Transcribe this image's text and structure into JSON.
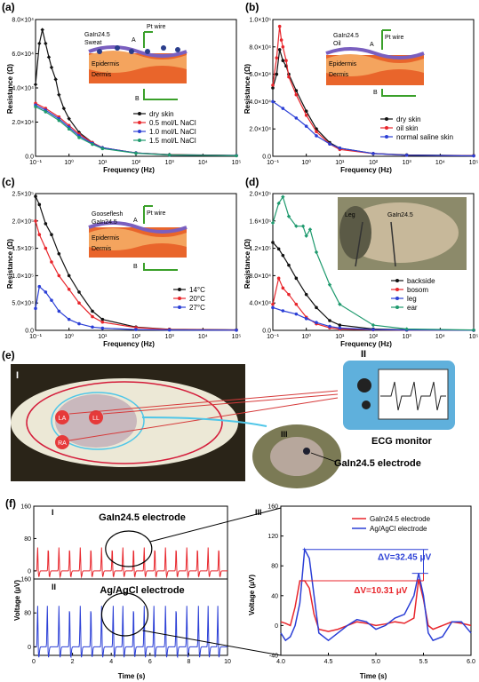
{
  "panels": {
    "a": {
      "label": "(a)",
      "xlabel": "Frequency (Hz)",
      "ylabel": "Resistance (Ω)",
      "ymax_label": "8.0×10⁴",
      "yticks": [
        "0.0",
        "2.0×10⁴",
        "4.0×10⁴",
        "6.0×10⁴",
        "8.0×10⁴"
      ],
      "xticks": [
        "10⁻¹",
        "10⁰",
        "10¹",
        "10²",
        "10³",
        "10⁴",
        "10⁵"
      ],
      "inset": {
        "top": "GaIn24.5",
        "mid": "Sweat",
        "l1": "Epidermis",
        "l2": "Dermis",
        "a": "A",
        "b": "B",
        "pt": "Pt wire"
      },
      "legend": [
        "dry skin",
        "0.5 mol/L NaCl",
        "1.0 mol/L NaCl",
        "1.5 mol/L NaCl"
      ]
    },
    "b": {
      "label": "(b)",
      "xlabel": "Frequency (Hz)",
      "ylabel": "Resistance (Ω)",
      "yticks": [
        "0.0",
        "2.0×10⁴",
        "4.0×10⁴",
        "6.0×10⁴",
        "8.0×10⁴",
        "1.0×10⁵"
      ],
      "xticks": [
        "10⁻¹",
        "10⁰",
        "10¹",
        "10²",
        "10³",
        "10⁴",
        "10⁵"
      ],
      "inset": {
        "top": "GaIn24.5",
        "mid": "Oil",
        "l1": "Epidermis",
        "l2": "Dermis",
        "a": "A",
        "b": "B",
        "pt": "Pt wire"
      },
      "legend": [
        "dry skin",
        "oil skin",
        "normal saline skin"
      ]
    },
    "c": {
      "label": "(c)",
      "xlabel": "Frequency (Hz)",
      "ylabel": "Resistance (Ω)",
      "yticks": [
        "0.0",
        "5.0×10⁴",
        "1.0×10⁵",
        "1.5×10⁵",
        "2.0×10⁵",
        "2.5×10⁵"
      ],
      "xticks": [
        "10⁻¹",
        "10⁰",
        "10¹",
        "10²",
        "10³",
        "10⁴",
        "10⁵"
      ],
      "inset": {
        "top": "Gooseflesh",
        "mid": "GaIn24.5",
        "l1": "Epidermis",
        "l2": "Dermis",
        "a": "A",
        "b": "B",
        "pt": "Pt wire"
      },
      "legend": [
        "14°C",
        "20°C",
        "27°C"
      ]
    },
    "d": {
      "label": "(d)",
      "xlabel": "Frequency (Hz)",
      "ylabel": "Resistance (Ω)",
      "yticks": [
        "0.0",
        "4.0×10⁴",
        "8.0×10⁴",
        "1.2×10⁵",
        "1.6×10⁵",
        "2.0×10⁵"
      ],
      "xticks": [
        "10⁻¹",
        "10⁰",
        "10¹",
        "10²",
        "10³",
        "10⁴",
        "10⁵"
      ],
      "photo": {
        "leg": "Leg",
        "gain": "GaIn24.5"
      },
      "legend": [
        "backside",
        "bosom",
        "leg",
        "ear"
      ]
    },
    "e": {
      "label": "(e)",
      "roman1": "I",
      "roman2": "II",
      "roman3": "III",
      "la": "LA",
      "ll": "LL",
      "ra": "RA",
      "monitor": "ECG monitor",
      "electrode": "GaIn24.5 electrode"
    },
    "f": {
      "label": "(f)",
      "roman1": "I",
      "roman2": "II",
      "roman3": "III",
      "top_title": "GaIn24.5 electrode",
      "bottom_title": "Ag/AgCl electrode",
      "ylabel": "Voltage (μV)",
      "xlabel": "Time (s)",
      "yticks": [
        "0",
        "80",
        "160"
      ],
      "xticks": [
        "0",
        "2",
        "4",
        "6",
        "8",
        "10"
      ],
      "r_yticks": [
        "-40",
        "0",
        "40",
        "80",
        "120",
        "160"
      ],
      "r_xticks": [
        "4.0",
        "4.5",
        "5.0",
        "5.5",
        "6.0"
      ],
      "r_legend": [
        "GaIn24.5 electrode",
        "Ag/AgCl electrode"
      ],
      "dv1": "ΔV=32.45 μV",
      "dv2": "ΔV=10.31 μV"
    }
  },
  "colors": {
    "black": "#111111",
    "red": "#e8262c",
    "blue": "#2b3fd6",
    "green": "#1f9a6e"
  },
  "chart_data": [
    {
      "type": "line",
      "id": "a",
      "xscale": "log",
      "xlim": [
        0.1,
        100000
      ],
      "ylim": [
        0,
        80000
      ],
      "series": [
        {
          "name": "dry skin",
          "x": [
            0.1,
            0.13,
            0.16,
            0.2,
            0.25,
            0.3,
            0.4,
            0.5,
            0.7,
            1,
            2,
            5,
            10,
            100,
            1000,
            100000
          ],
          "y": [
            42000,
            66000,
            74000,
            66000,
            58000,
            52000,
            45000,
            36000,
            28000,
            22000,
            14000,
            8000,
            5000,
            2000,
            1000,
            500
          ]
        },
        {
          "name": "0.5 mol/L NaCl",
          "x": [
            0.1,
            0.2,
            0.5,
            1,
            2,
            5,
            10,
            100,
            1000,
            100000
          ],
          "y": [
            31000,
            28000,
            23000,
            18000,
            13000,
            8000,
            5000,
            2000,
            900,
            400
          ]
        },
        {
          "name": "1.0 mol/L NaCl",
          "x": [
            0.1,
            0.2,
            0.5,
            1,
            2,
            5,
            10,
            100,
            1000,
            100000
          ],
          "y": [
            30000,
            27000,
            22000,
            17000,
            12000,
            7500,
            5000,
            2000,
            800,
            400
          ]
        },
        {
          "name": "1.5 mol/L NaCl",
          "x": [
            0.1,
            0.2,
            0.5,
            1,
            2,
            5,
            10,
            100,
            1000,
            100000
          ],
          "y": [
            29000,
            26000,
            21000,
            16000,
            11000,
            7000,
            4500,
            1800,
            800,
            300
          ]
        }
      ]
    },
    {
      "type": "line",
      "id": "b",
      "xscale": "log",
      "xlim": [
        0.1,
        100000
      ],
      "ylim": [
        0,
        100000
      ],
      "series": [
        {
          "name": "dry skin",
          "x": [
            0.1,
            0.13,
            0.16,
            0.2,
            0.25,
            0.3,
            0.5,
            1,
            2,
            5,
            10,
            100,
            1000,
            100000
          ],
          "y": [
            50000,
            60000,
            78000,
            70000,
            66000,
            60000,
            48000,
            33000,
            20000,
            10000,
            6000,
            2000,
            1000,
            500
          ]
        },
        {
          "name": "oil skin",
          "x": [
            0.1,
            0.13,
            0.16,
            0.18,
            0.2,
            0.25,
            0.3,
            0.5,
            1,
            2,
            5,
            10,
            100,
            1000,
            100000
          ],
          "y": [
            52000,
            72000,
            95000,
            85000,
            80000,
            70000,
            58000,
            45000,
            30000,
            18000,
            9000,
            5000,
            2000,
            800,
            400
          ]
        },
        {
          "name": "normal saline skin",
          "x": [
            0.1,
            0.2,
            0.5,
            1,
            2,
            5,
            10,
            100,
            1000,
            100000
          ],
          "y": [
            40000,
            35000,
            28000,
            22000,
            15000,
            9000,
            6000,
            2000,
            800,
            300
          ]
        }
      ]
    },
    {
      "type": "line",
      "id": "c",
      "xscale": "log",
      "xlim": [
        0.1,
        100000
      ],
      "ylim": [
        0,
        250000
      ],
      "series": [
        {
          "name": "14°C",
          "x": [
            0.1,
            0.13,
            0.2,
            0.3,
            0.5,
            1,
            2,
            5,
            10,
            100,
            1000,
            100000
          ],
          "y": [
            245000,
            230000,
            195000,
            175000,
            140000,
            100000,
            70000,
            35000,
            20000,
            6000,
            2000,
            800
          ]
        },
        {
          "name": "20°C",
          "x": [
            0.1,
            0.13,
            0.2,
            0.3,
            0.5,
            1,
            2,
            5,
            10,
            100,
            1000,
            100000
          ],
          "y": [
            200000,
            175000,
            150000,
            125000,
            100000,
            75000,
            50000,
            25000,
            15000,
            5000,
            1500,
            600
          ]
        },
        {
          "name": "27°C",
          "x": [
            0.1,
            0.13,
            0.2,
            0.3,
            0.5,
            1,
            2,
            5,
            10,
            100,
            1000,
            100000
          ],
          "y": [
            40000,
            80000,
            70000,
            55000,
            35000,
            20000,
            12000,
            6000,
            4000,
            1500,
            600,
            300
          ]
        }
      ]
    },
    {
      "type": "line",
      "id": "d",
      "xscale": "log",
      "xlim": [
        0.1,
        100000
      ],
      "ylim": [
        0,
        210000
      ],
      "series": [
        {
          "name": "backside",
          "x": [
            0.1,
            0.15,
            0.2,
            0.3,
            0.5,
            1,
            2,
            5,
            10,
            100,
            1000,
            100000
          ],
          "y": [
            135000,
            125000,
            115000,
            100000,
            80000,
            55000,
            35000,
            15000,
            8000,
            2000,
            800,
            300
          ]
        },
        {
          "name": "bosom",
          "x": [
            0.1,
            0.15,
            0.2,
            0.3,
            0.5,
            1,
            2,
            5,
            10,
            100,
            1000,
            100000
          ],
          "y": [
            40000,
            80000,
            65000,
            55000,
            40000,
            20000,
            10000,
            4000,
            2000,
            800,
            300,
            100
          ]
        },
        {
          "name": "leg",
          "x": [
            0.1,
            0.2,
            0.5,
            1,
            2,
            5,
            10,
            100,
            1000,
            100000
          ],
          "y": [
            35000,
            30000,
            25000,
            18000,
            12000,
            6000,
            3500,
            1200,
            500,
            200
          ]
        },
        {
          "name": "ear",
          "x": [
            0.1,
            0.15,
            0.2,
            0.3,
            0.5,
            0.8,
            1,
            1.3,
            2,
            5,
            10,
            100,
            1000,
            100000
          ],
          "y": [
            165000,
            195000,
            205000,
            175000,
            160000,
            160000,
            145000,
            155000,
            120000,
            70000,
            40000,
            8000,
            2000,
            500
          ]
        }
      ]
    },
    {
      "type": "line",
      "id": "f-I",
      "xlim": [
        0,
        10
      ],
      "ylim": [
        -20,
        160
      ],
      "series": [
        {
          "name": "GaIn24.5 electrode",
          "peak_times": [
            0.2,
            0.75,
            1.3,
            1.85,
            2.4,
            2.95,
            3.5,
            4.05,
            4.6,
            5.15,
            5.7,
            6.25,
            6.8,
            7.35,
            7.9,
            8.45,
            9.0,
            9.55
          ],
          "peak_value": 60
        }
      ]
    },
    {
      "type": "line",
      "id": "f-II",
      "xlim": [
        0,
        10
      ],
      "ylim": [
        -20,
        160
      ],
      "series": [
        {
          "name": "Ag/AgCl electrode",
          "peak_times": [
            0.2,
            0.7,
            1.3,
            1.85,
            2.4,
            2.95,
            3.5,
            4.1,
            4.6,
            5.15,
            5.7,
            6.2,
            6.8,
            7.35,
            7.9,
            8.5,
            9.0,
            9.5
          ],
          "peak_value": 100
        }
      ]
    },
    {
      "type": "line",
      "id": "f-III",
      "xlim": [
        4.0,
        6.0
      ],
      "ylim": [
        -40,
        160
      ],
      "series": [
        {
          "name": "GaIn24.5 electrode",
          "x": [
            4.0,
            4.05,
            4.1,
            4.15,
            4.2,
            4.25,
            4.3,
            4.35,
            4.4,
            4.5,
            4.6,
            4.7,
            4.8,
            4.9,
            5.0,
            5.1,
            5.2,
            5.3,
            5.4,
            5.45,
            5.5,
            5.55,
            5.6,
            5.7,
            5.8,
            5.9,
            6.0
          ],
          "y": [
            5,
            3,
            0,
            25,
            60,
            60,
            50,
            15,
            -5,
            -8,
            -5,
            0,
            5,
            3,
            0,
            2,
            5,
            3,
            10,
            62,
            35,
            0,
            -5,
            0,
            5,
            3,
            0
          ]
        },
        {
          "name": "Ag/AgCl electrode",
          "x": [
            4.0,
            4.05,
            4.1,
            4.15,
            4.2,
            4.25,
            4.3,
            4.35,
            4.4,
            4.5,
            4.6,
            4.7,
            4.8,
            4.9,
            5.0,
            5.1,
            5.2,
            5.3,
            5.4,
            5.45,
            5.5,
            5.55,
            5.6,
            5.7,
            5.8,
            5.9,
            6.0
          ],
          "y": [
            -10,
            -20,
            -15,
            0,
            30,
            102,
            90,
            40,
            -10,
            -20,
            -10,
            0,
            8,
            5,
            -5,
            0,
            10,
            15,
            40,
            70,
            40,
            -10,
            -20,
            -15,
            5,
            5,
            -10
          ]
        }
      ]
    }
  ]
}
